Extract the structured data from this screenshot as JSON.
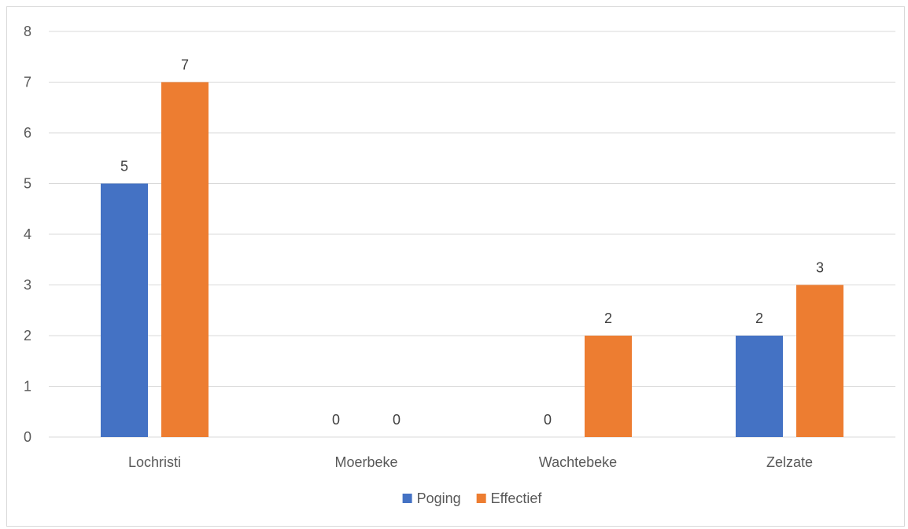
{
  "chart_data": {
    "type": "bar",
    "title": "",
    "xlabel": "",
    "ylabel": "",
    "categories": [
      "Lochristi",
      "Moerbeke",
      "Wachtebeke",
      "Zelzate"
    ],
    "series": [
      {
        "name": "Poging",
        "values": [
          5,
          0,
          0,
          2
        ],
        "color": "#4472C4"
      },
      {
        "name": "Effectief",
        "values": [
          7,
          0,
          2,
          3
        ],
        "color": "#ED7D31"
      }
    ],
    "ylim": [
      0,
      8
    ],
    "yticks": [
      0,
      1,
      2,
      3,
      4,
      5,
      6,
      7,
      8
    ],
    "grid": true,
    "data_labels": true,
    "legend_position": "bottom"
  },
  "colors": {
    "gridline": "#d9d9d9",
    "axis_text": "#595959",
    "label_text": "#404040"
  }
}
